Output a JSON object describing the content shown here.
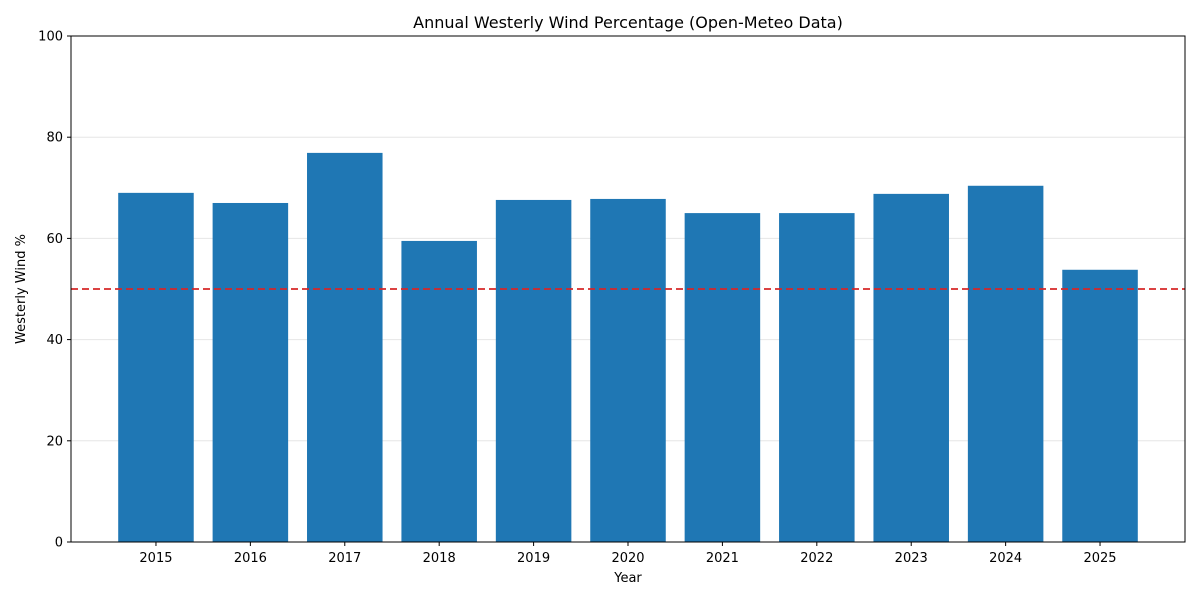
{
  "chart_data": {
    "type": "bar",
    "title": "Annual Westerly Wind Percentage (Open-Meteo Data)",
    "xlabel": "Year",
    "ylabel": "Westerly Wind %",
    "categories": [
      "2015",
      "2016",
      "2017",
      "2018",
      "2019",
      "2020",
      "2021",
      "2022",
      "2023",
      "2024",
      "2025"
    ],
    "values": [
      69.0,
      67.0,
      76.9,
      59.5,
      67.6,
      67.8,
      65.0,
      65.0,
      68.8,
      70.4,
      53.8
    ],
    "ylim": [
      0,
      100
    ],
    "yticks": [
      0,
      20,
      40,
      60,
      80,
      100
    ],
    "grid": true,
    "reference_line": {
      "value": 50,
      "style": "dashed"
    },
    "colors": {
      "bar": "#1f77b4",
      "reference_line": "#d62728",
      "grid": "#e6e6e6"
    }
  }
}
